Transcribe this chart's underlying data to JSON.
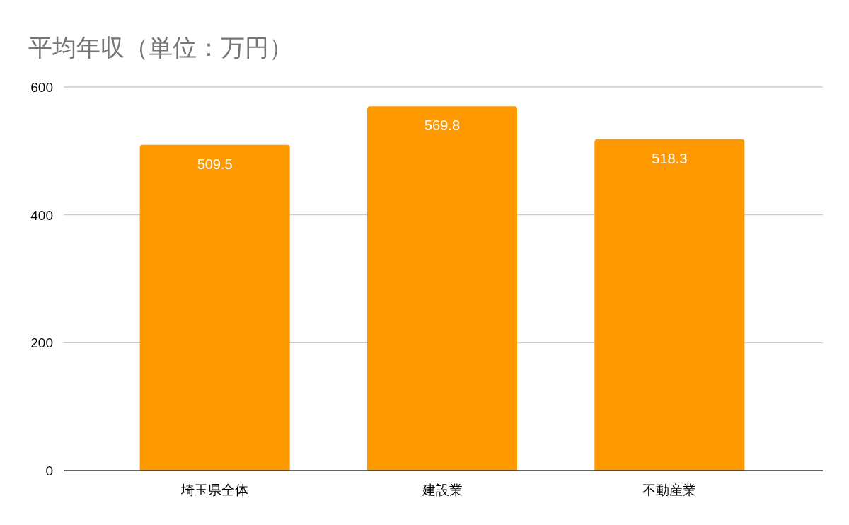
{
  "chart_data": {
    "type": "bar",
    "title": "平均年収（単位：万円）",
    "categories": [
      "埼玉県全体",
      "建設業",
      "不動産業"
    ],
    "values": [
      509.5,
      569.8,
      518.3
    ],
    "color": "#ff9900",
    "ylim": [
      0,
      600
    ],
    "yticks": [
      0,
      200,
      400,
      600
    ],
    "grid": "y",
    "data_labels": true
  }
}
